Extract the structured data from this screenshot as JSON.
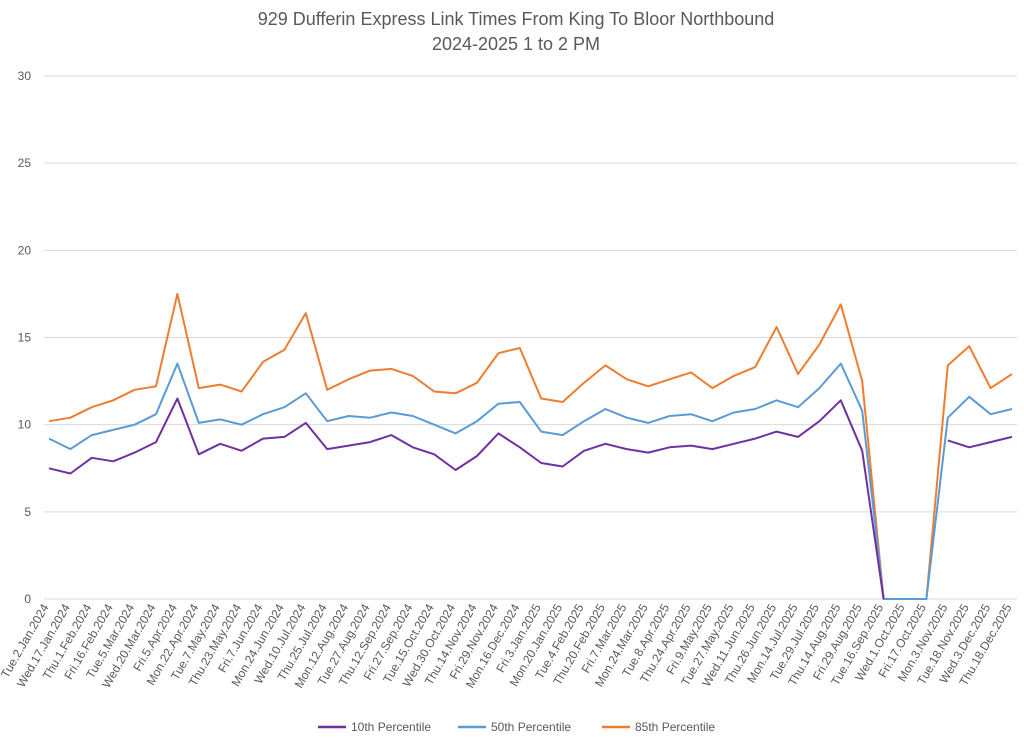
{
  "chart_data": {
    "type": "line",
    "title": "929 Dufferin Express Link Times From King To Bloor Northbound",
    "subtitle": "2024-2025 1 to 2 PM",
    "xlabel": "",
    "ylabel": "",
    "ylim": [
      0,
      30
    ],
    "yticks": [
      0,
      5,
      10,
      15,
      20,
      25,
      30
    ],
    "grid": true,
    "legend_position": "bottom",
    "x_tick_labels": [
      "Tue.2.Jan.2024",
      "Wed.17.Jan.2024",
      "Thu.1.Feb.2024",
      "Fri.16.Feb.2024",
      "Tue.5.Mar.2024",
      "Wed.20.Mar.2024",
      "Fri.5.Apr.2024",
      "Mon.22.Apr.2024",
      "Tue.7.May.2024",
      "Thu.23.May.2024",
      "Fri.7.Jun.2024",
      "Mon.24.Jun.2024",
      "Wed.10.Jul.2024",
      "Thu.25.Jul.2024",
      "Mon.12.Aug.2024",
      "Tue.27.Aug.2024",
      "Thu.12.Sep.2024",
      "Fri.27.Sep.2024",
      "Tue.15.Oct.2024",
      "Wed.30.Oct.2024",
      "Thu.14.Nov.2024",
      "Fri.29.Nov.2024",
      "Mon.16.Dec.2024",
      "Fri.3.Jan.2025",
      "Mon.20.Jan.2025",
      "Tue.4.Feb.2025",
      "Thu.20.Feb.2025",
      "Fri.7.Mar.2025",
      "Mon.24.Mar.2025",
      "Tue.8.Apr.2025",
      "Thu.24.Apr.2025",
      "Fri.9.May.2025",
      "Tue.27.May.2025",
      "Wed.11.Jun.2025",
      "Thu.26.Jun.2025",
      "Mon.14.Jul.2025",
      "Tue.29.Jul.2025",
      "Thu.14.Aug.2025",
      "Fri.29.Aug.2025",
      "Tue.16.Sep.2025",
      "Wed.1.Oct.2025",
      "Fri.17.Oct.2025",
      "Mon.3.Nov.2025",
      "Tue.18.Nov.2025",
      "Wed.3.Dec.2025",
      "Thu.18.Dec.2025"
    ],
    "x": [
      "Tue.2.Jan.2024",
      "Wed.17.Jan.2024",
      "Thu.1.Feb.2024",
      "Fri.16.Feb.2024",
      "Tue.5.Mar.2024",
      "Wed.20.Mar.2024",
      "Fri.5.Apr.2024",
      "Mon.22.Apr.2024",
      "Tue.7.May.2024",
      "Thu.23.May.2024",
      "Fri.7.Jun.2024",
      "Mon.24.Jun.2024",
      "Wed.10.Jul.2024",
      "Thu.25.Jul.2024",
      "Mon.12.Aug.2024",
      "Tue.27.Aug.2024",
      "Thu.12.Sep.2024",
      "Fri.27.Sep.2024",
      "Tue.15.Oct.2024",
      "Wed.30.Oct.2024",
      "Thu.14.Nov.2024",
      "Fri.29.Nov.2024",
      "Mon.16.Dec.2024",
      "Fri.3.Jan.2025",
      "Mon.20.Jan.2025",
      "Tue.4.Feb.2025",
      "Thu.20.Feb.2025",
      "Fri.7.Mar.2025",
      "Mon.24.Mar.2025",
      "Tue.8.Apr.2025",
      "Thu.24.Apr.2025",
      "Fri.9.May.2025",
      "Tue.27.May.2025",
      "Wed.11.Jun.2025",
      "Thu.26.Jun.2025",
      "Mon.14.Jul.2025",
      "Tue.29.Jul.2025",
      "Thu.14.Aug.2025",
      "Fri.29.Aug.2025",
      "Tue.16.Sep.2025",
      "Wed.1.Oct.2025",
      "Fri.17.Oct.2025",
      "Mon.3.Nov.2025",
      "Tue.18.Nov.2025",
      "Wed.3.Dec.2025",
      "Thu.18.Dec.2025"
    ],
    "series": [
      {
        "name": "10th Percentile",
        "color": "#7030A0",
        "values": [
          7.5,
          7.2,
          8.1,
          7.9,
          8.4,
          9.0,
          11.5,
          8.3,
          8.9,
          8.5,
          9.2,
          9.3,
          10.1,
          8.6,
          8.8,
          9.0,
          9.4,
          8.7,
          8.3,
          7.4,
          8.2,
          9.5,
          8.7,
          7.8,
          7.6,
          8.5,
          8.9,
          8.6,
          8.4,
          8.7,
          8.8,
          8.6,
          8.9,
          9.2,
          9.6,
          9.3,
          10.2,
          11.4,
          8.5,
          0,
          null,
          null,
          9.1,
          8.7,
          9.0,
          9.3
        ]
      },
      {
        "name": "50th Percentile",
        "color": "#5B9BD5",
        "values": [
          9.2,
          8.6,
          9.4,
          9.7,
          10.0,
          10.6,
          13.5,
          10.1,
          10.3,
          10.0,
          10.6,
          11.0,
          11.8,
          10.2,
          10.5,
          10.4,
          10.7,
          10.5,
          10.0,
          9.5,
          10.2,
          11.2,
          11.3,
          9.6,
          9.4,
          10.2,
          10.9,
          10.4,
          10.1,
          10.5,
          10.6,
          10.2,
          10.7,
          10.9,
          11.4,
          11.0,
          12.1,
          13.5,
          10.8,
          0,
          0,
          0,
          10.4,
          11.6,
          10.6,
          10.9
        ]
      },
      {
        "name": "85th Percentile",
        "color": "#ED7D31",
        "values": [
          10.2,
          10.4,
          11.0,
          11.4,
          12.0,
          12.2,
          17.5,
          12.1,
          12.3,
          11.9,
          13.6,
          14.3,
          16.4,
          12.0,
          12.6,
          13.1,
          13.2,
          12.8,
          11.9,
          11.8,
          12.4,
          14.1,
          14.4,
          11.5,
          11.3,
          12.4,
          13.4,
          12.6,
          12.2,
          12.6,
          13.0,
          12.1,
          12.8,
          13.3,
          15.6,
          12.9,
          14.6,
          16.9,
          12.5,
          0,
          0,
          0,
          13.4,
          14.5,
          12.1,
          12.9
        ]
      }
    ]
  }
}
